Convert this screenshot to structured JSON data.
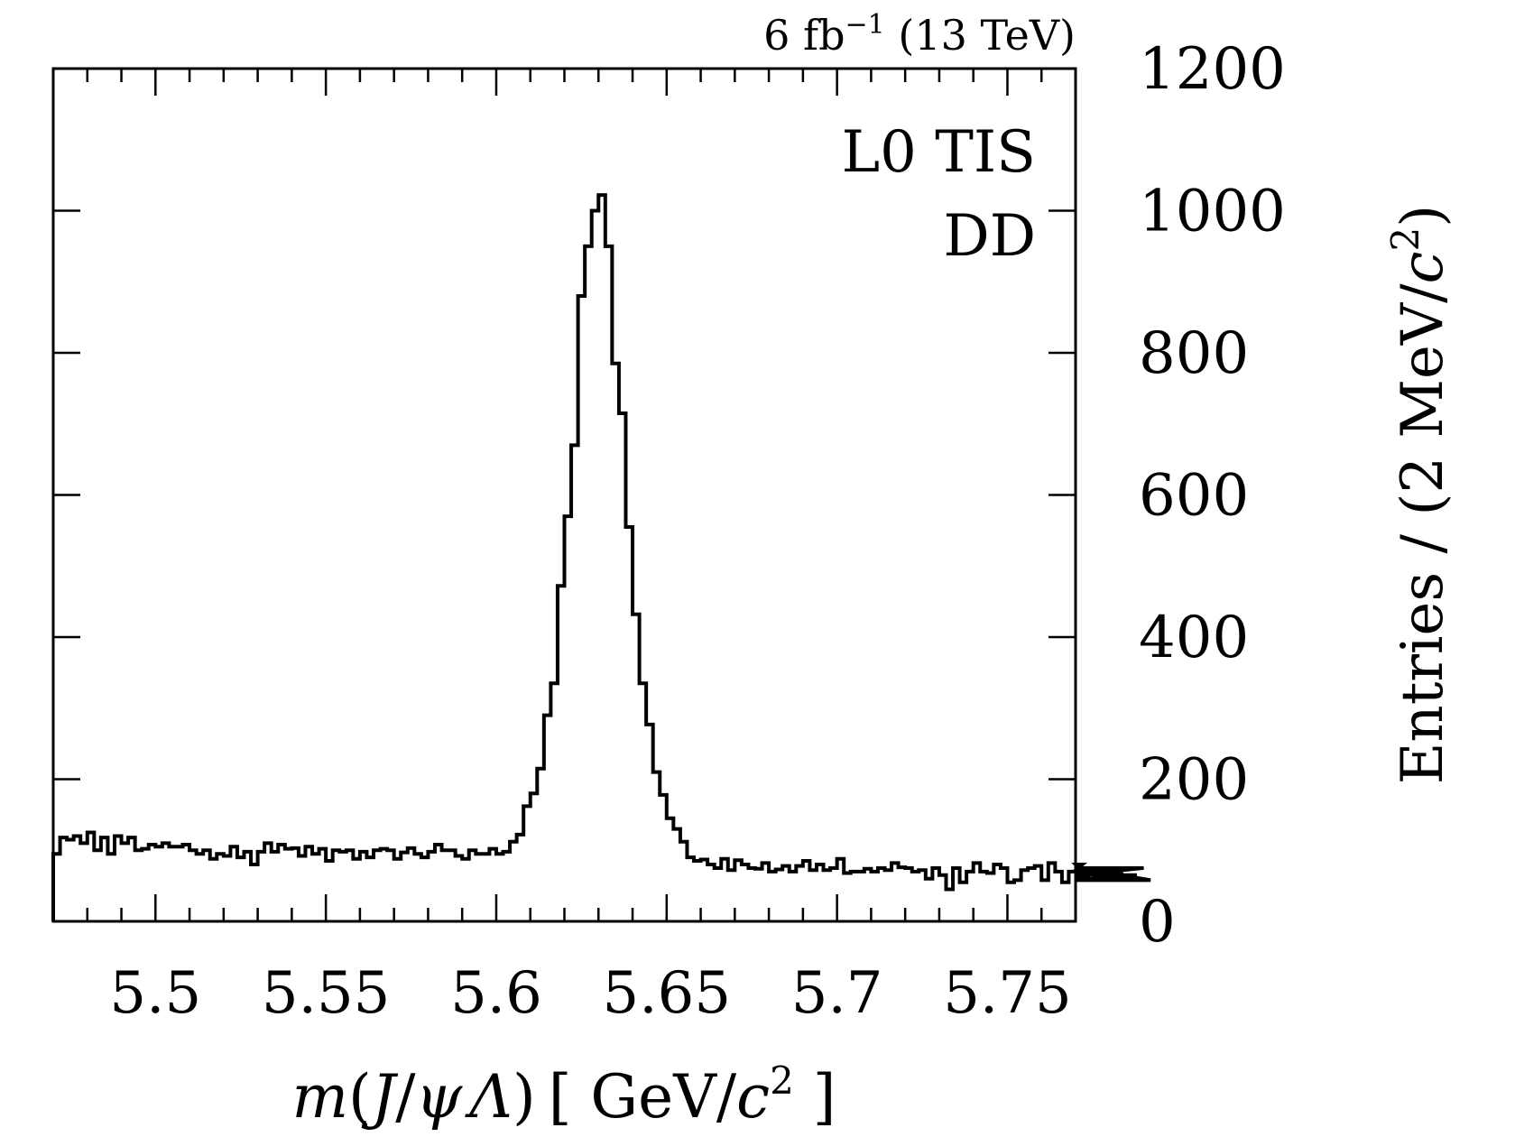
{
  "chart_data": {
    "type": "histogram",
    "top_label": {
      "main": "6 fb",
      "sup": "−1",
      "rest": " (13 TeV)"
    },
    "annotations": [
      "L0 TIS",
      "DD"
    ],
    "xlabel": {
      "m": "m",
      "open": "(",
      "J": "J",
      "slash": "/",
      "psi": "ψ",
      "Lambda": "Λ",
      "close": ")",
      "unit_open": "[ GeV/",
      "c": "c",
      "sup": "2",
      "unit_close": " ]"
    },
    "ylabel": {
      "main": "Entries / (2 MeV/",
      "c": "c",
      "sup": "2",
      "close": ")"
    },
    "xlim": [
      5.47,
      5.77
    ],
    "ylim": [
      0,
      1200
    ],
    "x_ticks": [
      {
        "value": 5.5,
        "label": "5.5"
      },
      {
        "value": 5.55,
        "label": "5.55"
      },
      {
        "value": 5.6,
        "label": "5.6"
      },
      {
        "value": 5.65,
        "label": "5.65"
      },
      {
        "value": 5.7,
        "label": "5.7"
      },
      {
        "value": 5.75,
        "label": "5.75"
      }
    ],
    "y_ticks": [
      {
        "value": 0,
        "label": "0"
      },
      {
        "value": 200,
        "label": "200"
      },
      {
        "value": 400,
        "label": "400"
      },
      {
        "value": 600,
        "label": "600"
      },
      {
        "value": 800,
        "label": "800"
      },
      {
        "value": 1000,
        "label": "1000"
      },
      {
        "value": 1200,
        "label": "1200"
      }
    ],
    "bin_width": 0.002,
    "x_start": 5.47,
    "values": [
      95,
      118,
      115,
      120,
      110,
      125,
      100,
      118,
      95,
      120,
      110,
      118,
      100,
      102,
      108,
      105,
      110,
      105,
      105,
      108,
      100,
      95,
      100,
      88,
      95,
      92,
      105,
      90,
      98,
      80,
      98,
      110,
      98,
      108,
      102,
      103,
      92,
      105,
      95,
      102,
      85,
      100,
      98,
      100,
      88,
      98,
      90,
      100,
      102,
      100,
      88,
      97,
      103,
      95,
      90,
      98,
      108,
      100,
      100,
      92,
      88,
      100,
      95,
      95,
      102,
      95,
      98,
      112,
      122,
      162,
      180,
      215,
      290,
      335,
      472,
      570,
      670,
      880,
      950,
      1000,
      1022,
      950,
      785,
      715,
      555,
      432,
      335,
      277,
      210,
      178,
      145,
      130,
      112,
      90,
      85,
      87,
      80,
      75,
      88,
      72,
      86,
      80,
      75,
      74,
      82,
      70,
      73,
      78,
      70,
      78,
      85,
      72,
      80,
      72,
      75,
      88,
      68,
      70,
      70,
      74,
      70,
      75,
      72,
      82,
      76,
      75,
      70,
      72,
      60,
      75,
      65,
      45,
      75,
      55,
      70,
      82,
      70,
      68,
      80,
      75,
      55,
      58,
      72,
      75,
      78,
      58,
      82,
      70,
      55,
      70,
      72,
      80,
      60,
      68,
      75,
      73,
      68,
      70,
      58,
      65,
      75,
      58
    ]
  }
}
